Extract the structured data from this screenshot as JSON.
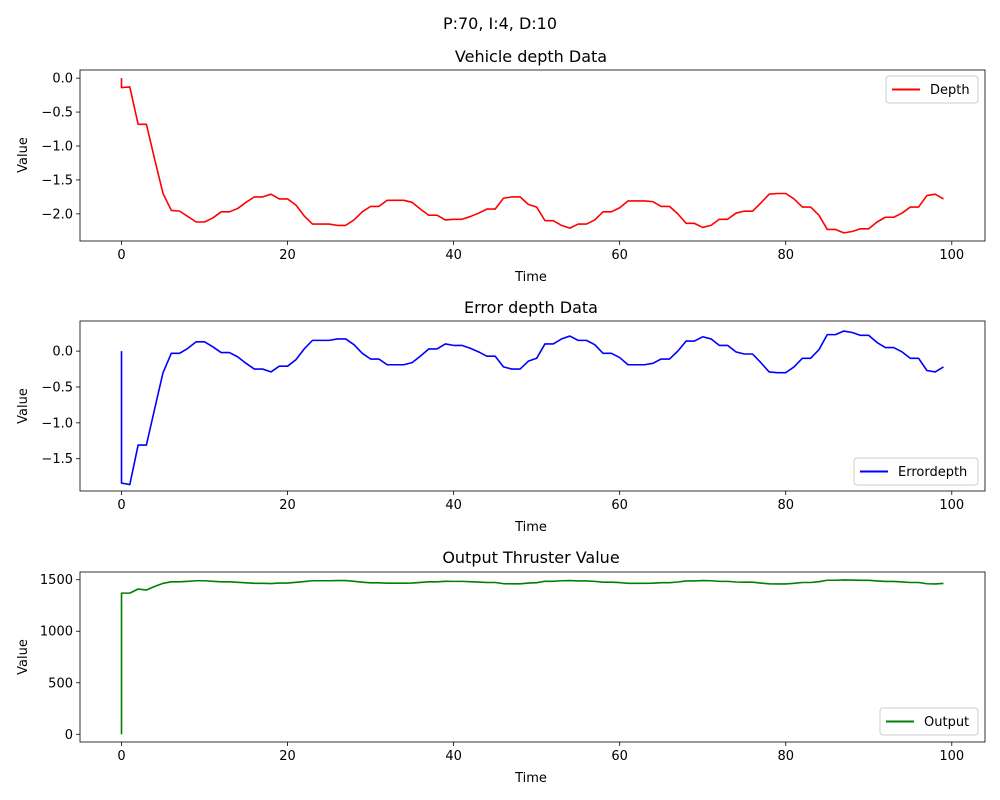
{
  "suptitle": "P:70, I:4, D:10",
  "chart_data": [
    {
      "type": "line",
      "title": "Vehicle depth Data",
      "xlabel": "Time",
      "ylabel": "Value",
      "xlim": [
        -5,
        104
      ],
      "ylim": [
        -2.4,
        0.12
      ],
      "xticks": [
        0,
        20,
        40,
        60,
        80,
        100
      ],
      "xtick_labels": [
        "0",
        "20",
        "40",
        "60",
        "80",
        "100"
      ],
      "yticks": [
        0.0,
        -0.5,
        -1.0,
        -1.5,
        -2.0
      ],
      "ytick_labels": [
        "0.0",
        "−0.5",
        "−1.0",
        "−1.5",
        "−2.0"
      ],
      "legend_position": "top-right",
      "grid": false,
      "series": [
        {
          "name": "Depth",
          "color": "#ff0000",
          "x": [
            0,
            0,
            1,
            2,
            3,
            4,
            5,
            6,
            7,
            8,
            9,
            10,
            11,
            12,
            13,
            14,
            15,
            16,
            17,
            18,
            19,
            20,
            21,
            22,
            23,
            24,
            25,
            26,
            27,
            28,
            29,
            30,
            31,
            32,
            33,
            34,
            35,
            36,
            37,
            38,
            39,
            40,
            41,
            42,
            43,
            44,
            45,
            46,
            47,
            48,
            49,
            50,
            51,
            52,
            53,
            54,
            55,
            56,
            57,
            58,
            59,
            60,
            61,
            62,
            63,
            64,
            65,
            66,
            67,
            68,
            69,
            70,
            71,
            72,
            73,
            74,
            75,
            76,
            77,
            78,
            79,
            80,
            81,
            82,
            83,
            84,
            85,
            86,
            87,
            88,
            89,
            90,
            91,
            92,
            93,
            94,
            95,
            96,
            97,
            98,
            99
          ],
          "y": [
            0.0,
            -0.14,
            -0.13,
            -0.68,
            -0.68,
            -1.2,
            -1.7,
            -1.95,
            -1.96,
            -2.04,
            -2.12,
            -2.12,
            -2.06,
            -1.97,
            -1.97,
            -1.92,
            -1.83,
            -1.75,
            -1.75,
            -1.71,
            -1.78,
            -1.78,
            -1.87,
            -2.03,
            -2.15,
            -2.15,
            -2.15,
            -2.17,
            -2.17,
            -2.09,
            -1.97,
            -1.89,
            -1.89,
            -1.8,
            -1.8,
            -1.8,
            -1.83,
            -1.93,
            -2.02,
            -2.02,
            -2.09,
            -2.08,
            -2.08,
            -2.04,
            -1.99,
            -1.93,
            -1.93,
            -1.77,
            -1.75,
            -1.75,
            -1.86,
            -1.9,
            -2.1,
            -2.1,
            -2.17,
            -2.21,
            -2.15,
            -2.15,
            -2.09,
            -1.97,
            -1.97,
            -1.91,
            -1.81,
            -1.81,
            -1.81,
            -1.82,
            -1.89,
            -1.89,
            -2.0,
            -2.14,
            -2.14,
            -2.2,
            -2.17,
            -2.08,
            -2.08,
            -1.99,
            -1.96,
            -1.96,
            -1.84,
            -1.71,
            -1.7,
            -1.7,
            -1.78,
            -1.9,
            -1.9,
            -2.02,
            -2.23,
            -2.23,
            -2.28,
            -2.26,
            -2.22,
            -2.22,
            -2.12,
            -2.05,
            -2.05,
            -1.99,
            -1.9,
            -1.9,
            -1.73,
            -1.71,
            -1.78
          ]
        }
      ]
    },
    {
      "type": "line",
      "title": "Error depth Data",
      "xlabel": "Time",
      "ylabel": "Value",
      "xlim": [
        -5,
        104
      ],
      "ylim": [
        -1.95,
        0.42
      ],
      "xticks": [
        0,
        20,
        40,
        60,
        80,
        100
      ],
      "xtick_labels": [
        "0",
        "20",
        "40",
        "60",
        "80",
        "100"
      ],
      "yticks": [
        0.0,
        -0.5,
        -1.0,
        -1.5
      ],
      "ytick_labels": [
        "0.0",
        "−0.5",
        "−1.0",
        "−1.5"
      ],
      "legend_position": "bottom-right",
      "grid": false,
      "series": [
        {
          "name": "Errordepth",
          "color": "#0000ff",
          "x": [
            0,
            0,
            1,
            2,
            3,
            4,
            5,
            6,
            7,
            8,
            9,
            10,
            11,
            12,
            13,
            14,
            15,
            16,
            17,
            18,
            19,
            20,
            21,
            22,
            23,
            24,
            25,
            26,
            27,
            28,
            29,
            30,
            31,
            32,
            33,
            34,
            35,
            36,
            37,
            38,
            39,
            40,
            41,
            42,
            43,
            44,
            45,
            46,
            47,
            48,
            49,
            50,
            51,
            52,
            53,
            54,
            55,
            56,
            57,
            58,
            59,
            60,
            61,
            62,
            63,
            64,
            65,
            66,
            67,
            68,
            69,
            70,
            71,
            72,
            73,
            74,
            75,
            76,
            77,
            78,
            79,
            80,
            81,
            82,
            83,
            84,
            85,
            86,
            87,
            88,
            89,
            90,
            91,
            92,
            93,
            94,
            95,
            96,
            97,
            98,
            99
          ],
          "y": [
            0.0,
            -1.84,
            -1.86,
            -1.31,
            -1.31,
            -0.8,
            -0.3,
            -0.03,
            -0.03,
            0.04,
            0.13,
            0.13,
            0.06,
            -0.02,
            -0.02,
            -0.08,
            -0.17,
            -0.25,
            -0.25,
            -0.29,
            -0.21,
            -0.21,
            -0.12,
            0.03,
            0.15,
            0.15,
            0.15,
            0.17,
            0.17,
            0.09,
            -0.03,
            -0.11,
            -0.11,
            -0.19,
            -0.19,
            -0.19,
            -0.16,
            -0.07,
            0.03,
            0.03,
            0.1,
            0.08,
            0.08,
            0.04,
            -0.01,
            -0.07,
            -0.07,
            -0.22,
            -0.25,
            -0.25,
            -0.14,
            -0.1,
            0.1,
            0.1,
            0.17,
            0.21,
            0.15,
            0.15,
            0.09,
            -0.03,
            -0.03,
            -0.09,
            -0.19,
            -0.19,
            -0.19,
            -0.17,
            -0.11,
            -0.11,
            0.0,
            0.14,
            0.14,
            0.2,
            0.17,
            0.08,
            0.08,
            -0.01,
            -0.04,
            -0.04,
            -0.16,
            -0.29,
            -0.3,
            -0.3,
            -0.22,
            -0.1,
            -0.1,
            0.02,
            0.23,
            0.23,
            0.28,
            0.26,
            0.22,
            0.22,
            0.12,
            0.05,
            0.05,
            -0.01,
            -0.1,
            -0.1,
            -0.27,
            -0.29,
            -0.22
          ]
        }
      ]
    },
    {
      "type": "line",
      "title": "Output Thruster Value",
      "xlabel": "Time",
      "ylabel": "Value",
      "xlim": [
        -5,
        104
      ],
      "ylim": [
        -75,
        1575
      ],
      "xticks": [
        0,
        20,
        40,
        60,
        80,
        100
      ],
      "xtick_labels": [
        "0",
        "20",
        "40",
        "60",
        "80",
        "100"
      ],
      "yticks": [
        0,
        500,
        1000,
        1500
      ],
      "ytick_labels": [
        "0",
        "500",
        "1000",
        "1500"
      ],
      "legend_position": "bottom-right",
      "grid": false,
      "series": [
        {
          "name": "Output",
          "color": "#008000",
          "x": [
            0,
            0,
            1,
            2,
            3,
            4,
            5,
            6,
            7,
            8,
            9,
            10,
            11,
            12,
            13,
            14,
            15,
            16,
            17,
            18,
            19,
            20,
            21,
            22,
            23,
            24,
            25,
            26,
            27,
            28,
            29,
            30,
            31,
            32,
            33,
            34,
            35,
            36,
            37,
            38,
            39,
            40,
            41,
            42,
            43,
            44,
            45,
            46,
            47,
            48,
            49,
            50,
            51,
            52,
            53,
            54,
            55,
            56,
            57,
            58,
            59,
            60,
            61,
            62,
            63,
            64,
            65,
            66,
            67,
            68,
            69,
            70,
            71,
            72,
            73,
            74,
            75,
            76,
            77,
            78,
            79,
            80,
            81,
            82,
            83,
            84,
            85,
            86,
            87,
            88,
            89,
            90,
            91,
            92,
            93,
            94,
            95,
            96,
            97,
            98,
            99
          ],
          "y": [
            0,
            1370,
            1370,
            1410,
            1400,
            1435,
            1465,
            1480,
            1480,
            1485,
            1490,
            1490,
            1485,
            1480,
            1480,
            1475,
            1470,
            1465,
            1465,
            1463,
            1468,
            1468,
            1475,
            1482,
            1490,
            1490,
            1490,
            1492,
            1492,
            1485,
            1476,
            1470,
            1470,
            1466,
            1466,
            1466,
            1468,
            1474,
            1480,
            1480,
            1485,
            1484,
            1484,
            1481,
            1477,
            1473,
            1473,
            1462,
            1460,
            1460,
            1468,
            1471,
            1485,
            1485,
            1490,
            1492,
            1488,
            1488,
            1484,
            1476,
            1476,
            1472,
            1465,
            1465,
            1465,
            1466,
            1471,
            1471,
            1478,
            1488,
            1488,
            1492,
            1490,
            1484,
            1484,
            1478,
            1476,
            1476,
            1468,
            1460,
            1459,
            1459,
            1465,
            1473,
            1473,
            1481,
            1495,
            1495,
            1498,
            1497,
            1494,
            1494,
            1488,
            1483,
            1483,
            1479,
            1473,
            1473,
            1461,
            1459,
            1464
          ]
        }
      ]
    }
  ]
}
